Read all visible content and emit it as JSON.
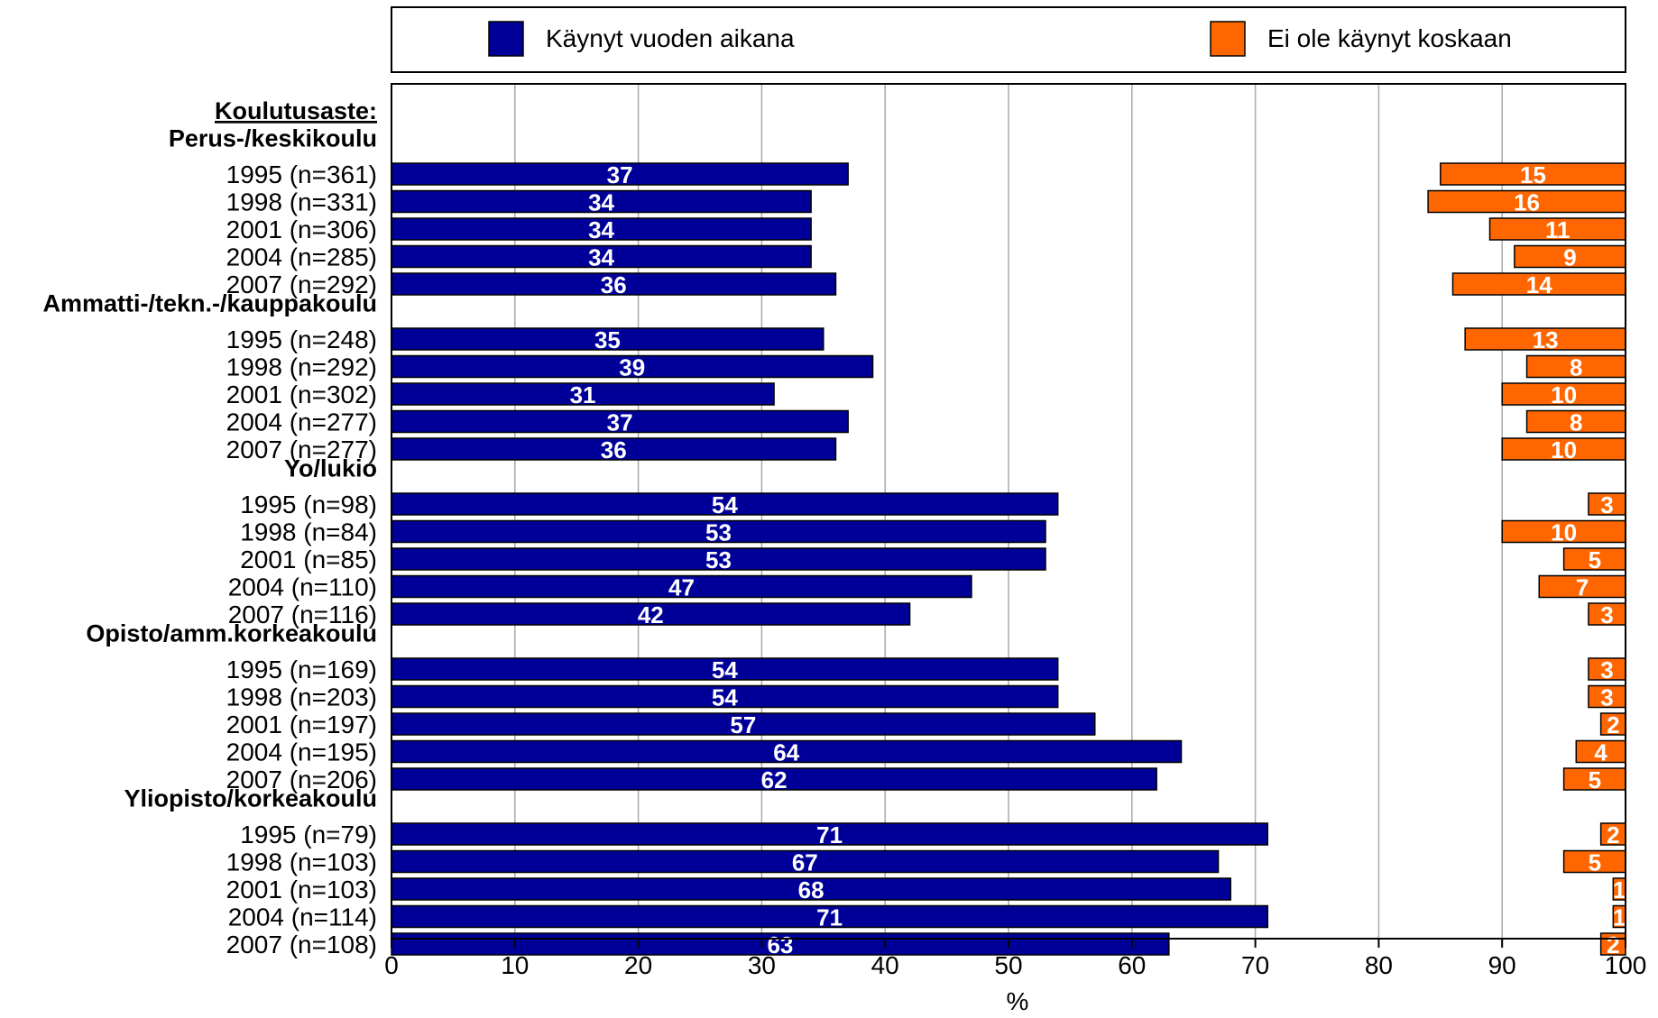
{
  "chart_data": {
    "type": "bar",
    "orientation": "horizontal",
    "stacked_from_opposite_ends": true,
    "xlabel": "%",
    "xlim": [
      0,
      100
    ],
    "xticks": [
      0,
      10,
      20,
      30,
      40,
      50,
      60,
      70,
      80,
      90,
      100
    ],
    "grid": "vertical",
    "legend_position": "top",
    "header_label": "Koulutusaste:",
    "legend": [
      {
        "name": "Käynyt vuoden aikana",
        "color": "#000099"
      },
      {
        "name": "Ei ole käynyt koskaan",
        "color": "#ff6600"
      }
    ],
    "groups": [
      {
        "name": "Perus-/keskikoulu",
        "rows": [
          {
            "label": "1995 (n=361)",
            "visited": 37,
            "never": 15
          },
          {
            "label": "1998 (n=331)",
            "visited": 34,
            "never": 16
          },
          {
            "label": "2001 (n=306)",
            "visited": 34,
            "never": 11
          },
          {
            "label": "2004 (n=285)",
            "visited": 34,
            "never": 9
          },
          {
            "label": "2007 (n=292)",
            "visited": 36,
            "never": 14
          }
        ]
      },
      {
        "name": "Ammatti-/tekn.-/kauppakoulu",
        "rows": [
          {
            "label": "1995 (n=248)",
            "visited": 35,
            "never": 13
          },
          {
            "label": "1998 (n=292)",
            "visited": 39,
            "never": 8
          },
          {
            "label": "2001 (n=302)",
            "visited": 31,
            "never": 10
          },
          {
            "label": "2004 (n=277)",
            "visited": 37,
            "never": 8
          },
          {
            "label": "2007 (n=277)",
            "visited": 36,
            "never": 10
          }
        ]
      },
      {
        "name": "Yo/lukio",
        "rows": [
          {
            "label": "1995 (n=98)",
            "visited": 54,
            "never": 3
          },
          {
            "label": "1998 (n=84)",
            "visited": 53,
            "never": 10
          },
          {
            "label": "2001 (n=85)",
            "visited": 53,
            "never": 5
          },
          {
            "label": "2004 (n=110)",
            "visited": 47,
            "never": 7
          },
          {
            "label": "2007 (n=116)",
            "visited": 42,
            "never": 3
          }
        ]
      },
      {
        "name": "Opisto/amm.korkeakoulu",
        "rows": [
          {
            "label": "1995 (n=169)",
            "visited": 54,
            "never": 3
          },
          {
            "label": "1998 (n=203)",
            "visited": 54,
            "never": 3
          },
          {
            "label": "2001 (n=197)",
            "visited": 57,
            "never": 2
          },
          {
            "label": "2004 (n=195)",
            "visited": 64,
            "never": 4
          },
          {
            "label": "2007 (n=206)",
            "visited": 62,
            "never": 5
          }
        ]
      },
      {
        "name": "Yliopisto/korkeakoulu",
        "rows": [
          {
            "label": "1995 (n=79)",
            "visited": 71,
            "never": 2
          },
          {
            "label": "1998 (n=103)",
            "visited": 67,
            "never": 5
          },
          {
            "label": "2001 (n=103)",
            "visited": 68,
            "never": 1
          },
          {
            "label": "2004 (n=114)",
            "visited": 71,
            "never": 1
          },
          {
            "label": "2007 (n=108)",
            "visited": 63,
            "never": 2
          }
        ]
      }
    ]
  }
}
